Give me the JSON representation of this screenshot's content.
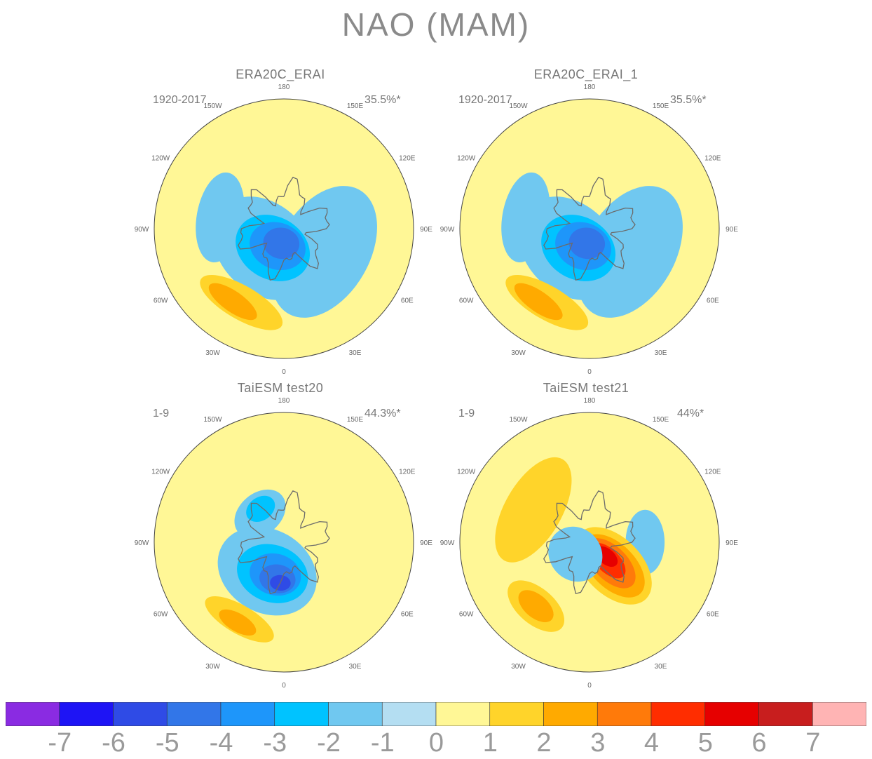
{
  "figure": {
    "title": "NAO (MAM)"
  },
  "panels": [
    {
      "title": "ERA20C_ERAI",
      "years": "1920-2017",
      "variance": "35.5%*"
    },
    {
      "title": "ERA20C_ERAI_1",
      "years": "1920-2017",
      "variance": "35.5%*"
    },
    {
      "title": "TaiESM test20",
      "years": "1-9",
      "variance": "44.3%*"
    },
    {
      "title": "TaiESM test21",
      "years": "1-9",
      "variance": "44%*"
    }
  ],
  "longitude_labels": [
    "180",
    "150E",
    "120E",
    "90E",
    "60E",
    "30E",
    "0",
    "30W",
    "60W",
    "90W",
    "120W",
    "150W"
  ],
  "colorbar": {
    "ticks": [
      "-7",
      "-6",
      "-5",
      "-4",
      "-3",
      "-2",
      "-1",
      "0",
      "1",
      "2",
      "3",
      "4",
      "5",
      "6",
      "7"
    ],
    "colors": [
      "#8a2be2",
      "#1e14f5",
      "#2f4be6",
      "#3276e8",
      "#1e96fa",
      "#00c3ff",
      "#70c8f0",
      "#b4def2",
      "#fff796",
      "#ffd42a",
      "#ffaa00",
      "#ff7a0a",
      "#ff2d00",
      "#e60000",
      "#c81e1e",
      "#ffb4b4"
    ]
  },
  "map_fields": [
    {
      "blobs": [
        {
          "lon": 150,
          "lat": 55,
          "rx": 0.55,
          "ry": 0.18,
          "level": 0
        },
        {
          "lon": -160,
          "lat": 60,
          "rx": 0.35,
          "ry": 0.14,
          "level": 0
        },
        {
          "lon": -100,
          "lat": 55,
          "rx": 0.35,
          "ry": 0.18,
          "level": -1
        },
        {
          "lon": 60,
          "lat": 65,
          "rx": 0.55,
          "ry": 0.35,
          "level": -1
        },
        {
          "lon": -45,
          "lat": 75,
          "rx": 0.45,
          "ry": 0.34,
          "level": -1
        },
        {
          "lon": -30,
          "lat": 78,
          "rx": 0.3,
          "ry": 0.24,
          "level": -2
        },
        {
          "lon": -20,
          "lat": 80,
          "rx": 0.22,
          "ry": 0.18,
          "level": -3
        },
        {
          "lon": -10,
          "lat": 82,
          "rx": 0.14,
          "ry": 0.12,
          "level": -4
        },
        {
          "lon": -30,
          "lat": 44,
          "rx": 0.36,
          "ry": 0.13,
          "level": 1
        },
        {
          "lon": -35,
          "lat": 42,
          "rx": 0.22,
          "ry": 0.08,
          "level": 2
        }
      ]
    },
    {
      "blobs": [
        {
          "lon": 150,
          "lat": 55,
          "rx": 0.55,
          "ry": 0.18,
          "level": 0
        },
        {
          "lon": -160,
          "lat": 60,
          "rx": 0.35,
          "ry": 0.14,
          "level": 0
        },
        {
          "lon": -100,
          "lat": 55,
          "rx": 0.35,
          "ry": 0.18,
          "level": -1
        },
        {
          "lon": 60,
          "lat": 65,
          "rx": 0.55,
          "ry": 0.35,
          "level": -1
        },
        {
          "lon": -45,
          "lat": 75,
          "rx": 0.45,
          "ry": 0.34,
          "level": -1
        },
        {
          "lon": -30,
          "lat": 78,
          "rx": 0.3,
          "ry": 0.24,
          "level": -2
        },
        {
          "lon": -20,
          "lat": 80,
          "rx": 0.22,
          "ry": 0.18,
          "level": -3
        },
        {
          "lon": -10,
          "lat": 82,
          "rx": 0.14,
          "ry": 0.12,
          "level": -4
        },
        {
          "lon": -30,
          "lat": 44,
          "rx": 0.36,
          "ry": 0.13,
          "level": 1
        },
        {
          "lon": -35,
          "lat": 42,
          "rx": 0.22,
          "ry": 0.08,
          "level": 2
        }
      ]
    },
    {
      "blobs": [
        {
          "lon": 150,
          "lat": 50,
          "rx": 0.4,
          "ry": 0.2,
          "level": 0
        },
        {
          "lon": -140,
          "lat": 70,
          "rx": 0.22,
          "ry": 0.16,
          "level": -1
        },
        {
          "lon": -145,
          "lat": 68,
          "rx": 0.12,
          "ry": 0.09,
          "level": -2
        },
        {
          "lon": -30,
          "lat": 72,
          "rx": 0.4,
          "ry": 0.32,
          "level": -1
        },
        {
          "lon": -20,
          "lat": 72,
          "rx": 0.28,
          "ry": 0.22,
          "level": -2
        },
        {
          "lon": -15,
          "lat": 72,
          "rx": 0.2,
          "ry": 0.16,
          "level": -3
        },
        {
          "lon": -10,
          "lat": 70,
          "rx": 0.14,
          "ry": 0.11,
          "level": -4
        },
        {
          "lon": -5,
          "lat": 68,
          "rx": 0.08,
          "ry": 0.06,
          "level": -5
        },
        {
          "lon": -30,
          "lat": 42,
          "rx": 0.3,
          "ry": 0.11,
          "level": 1
        },
        {
          "lon": -30,
          "lat": 40,
          "rx": 0.16,
          "ry": 0.07,
          "level": 2
        }
      ]
    },
    {
      "blobs": [
        {
          "lon": -120,
          "lat": 55,
          "rx": 0.45,
          "ry": 0.22,
          "level": 1
        },
        {
          "lon": 90,
          "lat": 60,
          "rx": 0.25,
          "ry": 0.15,
          "level": -1
        },
        {
          "lon": 45,
          "lat": 72,
          "rx": 0.22,
          "ry": 0.36,
          "level": 1
        },
        {
          "lon": 45,
          "lat": 72,
          "rx": 0.17,
          "ry": 0.3,
          "level": 2
        },
        {
          "lon": 45,
          "lat": 74,
          "rx": 0.13,
          "ry": 0.24,
          "level": 3
        },
        {
          "lon": 45,
          "lat": 76,
          "rx": 0.09,
          "ry": 0.17,
          "level": 4
        },
        {
          "lon": 50,
          "lat": 78,
          "rx": 0.06,
          "ry": 0.1,
          "level": 5
        },
        {
          "lon": -50,
          "lat": 80,
          "rx": 0.22,
          "ry": 0.2,
          "level": -1
        },
        {
          "lon": -40,
          "lat": 45,
          "rx": 0.26,
          "ry": 0.14,
          "level": 1
        },
        {
          "lon": -40,
          "lat": 45,
          "rx": 0.16,
          "ry": 0.09,
          "level": 2
        }
      ]
    }
  ]
}
